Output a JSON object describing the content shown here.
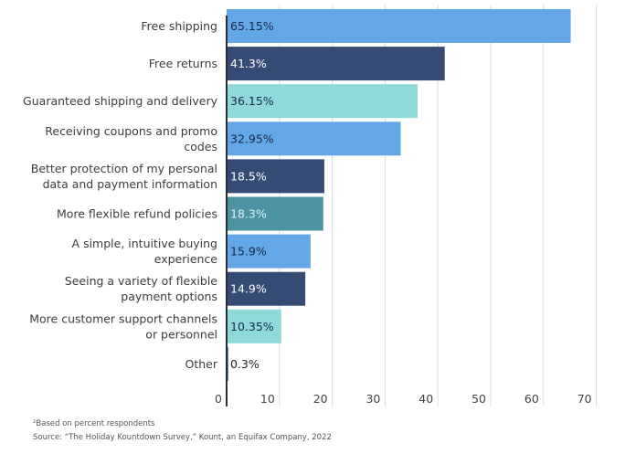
{
  "chart_data": {
    "type": "bar",
    "orientation": "horizontal",
    "title": "",
    "xlabel": "",
    "ylabel": "",
    "xlim": [
      0,
      70
    ],
    "x_ticks": [
      0,
      10,
      20,
      30,
      40,
      50,
      60,
      70
    ],
    "grid": true,
    "categories": [
      [
        "Free shipping"
      ],
      [
        "Free returns"
      ],
      [
        "Guaranteed shipping and delivery"
      ],
      [
        "Receiving coupons and promo",
        "codes"
      ],
      [
        "Better protection of my personal",
        "data and payment information"
      ],
      [
        "More flexible refund policies"
      ],
      [
        "A simple, intuitive buying",
        "experience"
      ],
      [
        "Seeing a variety of flexible",
        "payment options"
      ],
      [
        "More customer support channels",
        "or personnel"
      ],
      [
        "Other"
      ]
    ],
    "values": [
      65.15,
      41.3,
      36.15,
      32.95,
      18.5,
      18.3,
      15.9,
      14.9,
      10.35,
      0.3
    ],
    "value_labels": [
      "65.15%",
      "41.3%",
      "36.15%",
      "32.95%",
      "18.5%",
      "18.3%",
      "15.9%",
      "14.9%",
      "10.35%",
      "0.3%"
    ],
    "bar_colors": [
      "#63a7e6",
      "#354a74",
      "#8fdad8",
      "#63a7e6",
      "#354a74",
      "#4e93a3",
      "#63a7e6",
      "#354a74",
      "#8fdad8",
      "#4e93a3"
    ],
    "label_colors": [
      "#17284a",
      "#ffffff",
      "#17284a",
      "#17284a",
      "#ffffff",
      "#dff5f5",
      "#17284a",
      "#ffffff",
      "#17284a",
      "#222222"
    ]
  },
  "footnotes": {
    "note": "²Based on percent respondents",
    "source": "Source: “The Holiday Kountdown Survey,” Kount, an Equifax Company, 2022"
  },
  "colors": {
    "grid": "#dddddd",
    "axis": "#2b2f3a"
  }
}
